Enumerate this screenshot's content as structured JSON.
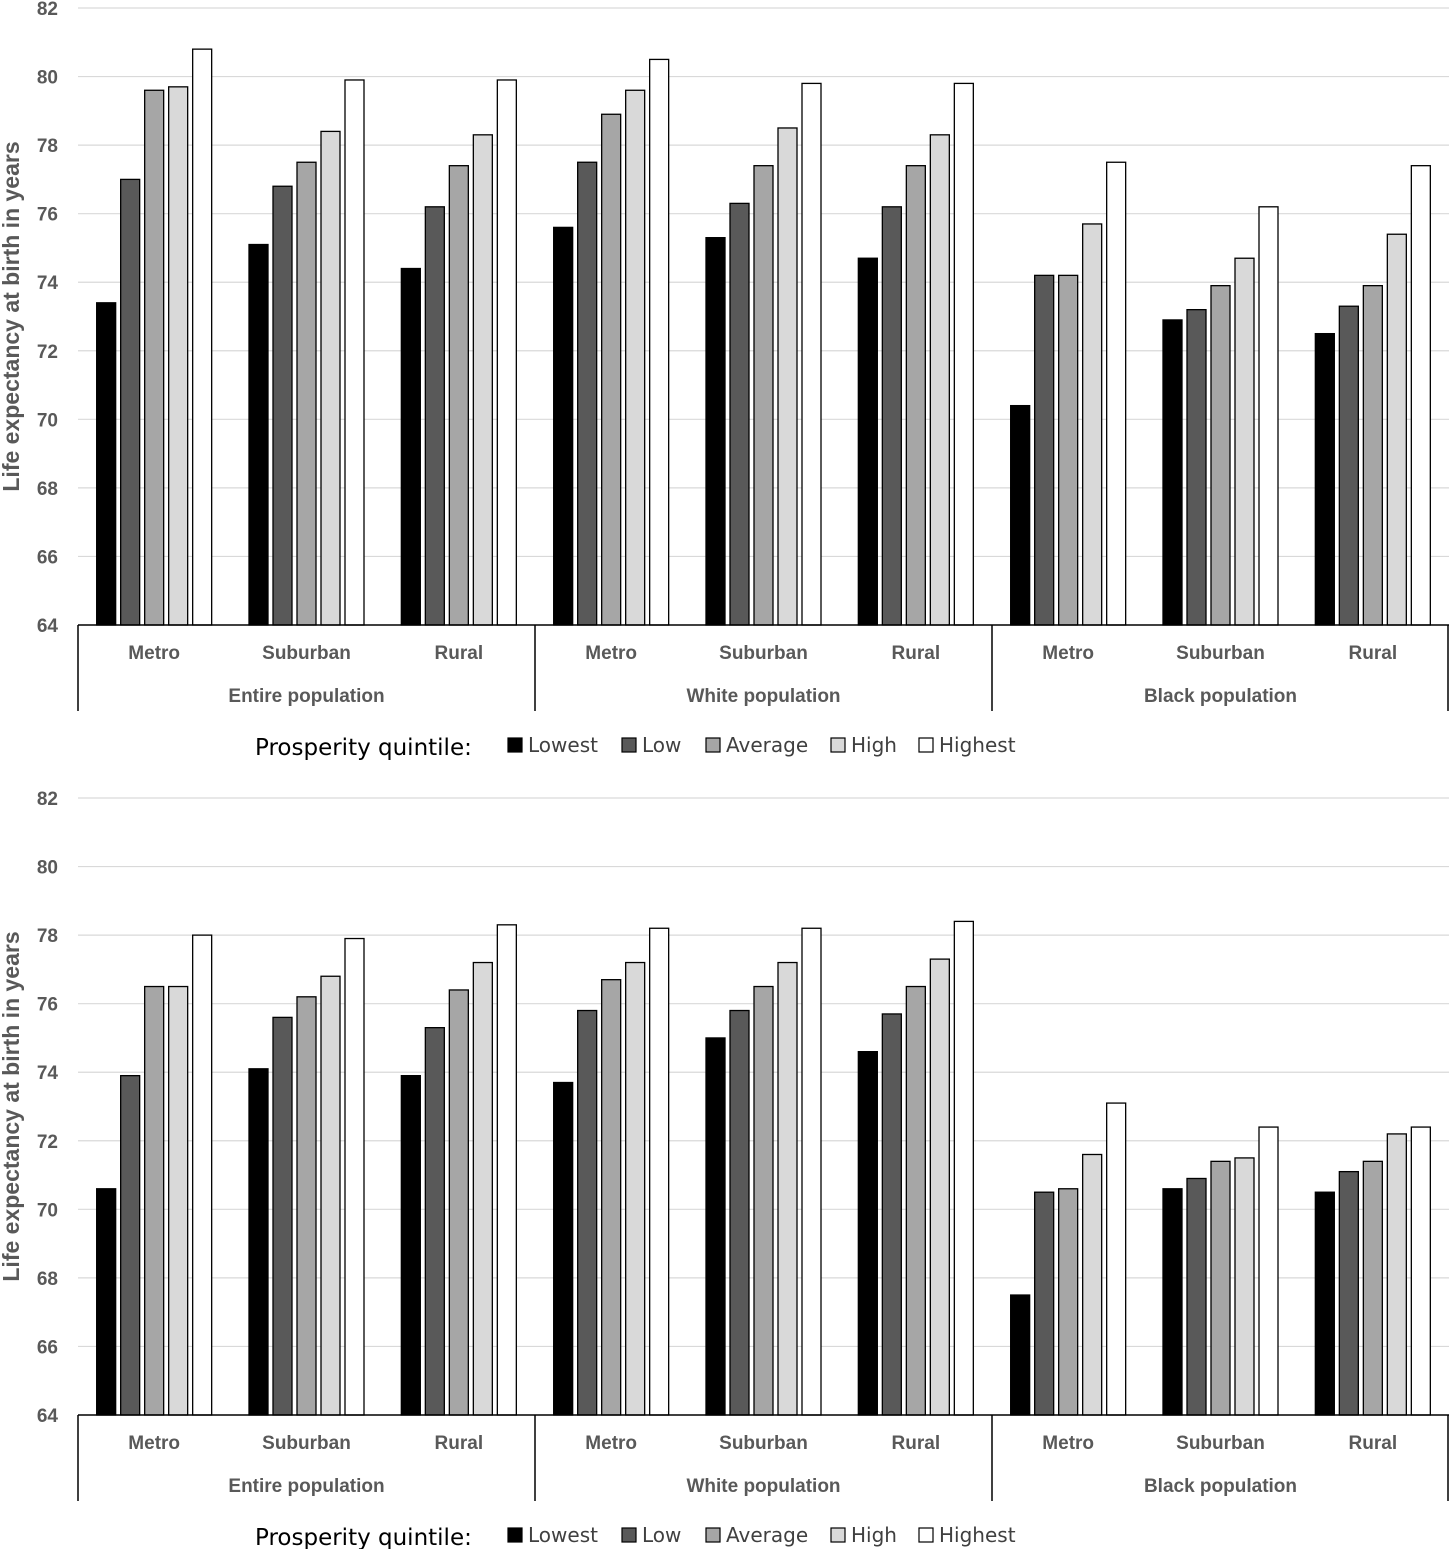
{
  "colors": {
    "Lowest": "#000000",
    "Low": "#595959",
    "Average": "#a6a6a6",
    "High": "#d9d9d9",
    "Highest": "#ffffff",
    "grid": "#d9d9d9",
    "axis": "#000000"
  },
  "chart_data": [
    {
      "type": "bar",
      "ylabel": "Life expectancy at birth in years",
      "ylim": [
        64,
        82
      ],
      "yticks": [
        "64",
        "66",
        "68",
        "70",
        "72",
        "74",
        "76",
        "78",
        "80",
        "82"
      ],
      "groups": [
        "Entire population",
        "White population",
        "Black population"
      ],
      "categories": [
        "Metro",
        "Suburban",
        "Rural",
        "Metro",
        "Suburban",
        "Rural",
        "Metro",
        "Suburban",
        "Rural"
      ],
      "legend_title": "Prosperity quintile:",
      "series": [
        {
          "name": "Lowest",
          "values": [
            73.4,
            75.1,
            74.4,
            75.6,
            75.3,
            74.7,
            70.4,
            72.9,
            72.5
          ]
        },
        {
          "name": "Low",
          "values": [
            77.0,
            76.8,
            76.2,
            77.5,
            76.3,
            76.2,
            74.2,
            73.2,
            73.3
          ]
        },
        {
          "name": "Average",
          "values": [
            79.6,
            77.5,
            77.4,
            78.9,
            77.4,
            77.4,
            74.2,
            73.9,
            73.9
          ]
        },
        {
          "name": "High",
          "values": [
            79.7,
            78.4,
            78.3,
            79.6,
            78.5,
            78.3,
            75.7,
            74.7,
            75.4
          ]
        },
        {
          "name": "Highest",
          "values": [
            80.8,
            79.9,
            79.9,
            80.5,
            79.8,
            79.8,
            77.5,
            76.2,
            77.4
          ]
        }
      ]
    },
    {
      "type": "bar",
      "ylabel": "Life expectancy at birth in years",
      "ylim": [
        64,
        82
      ],
      "yticks": [
        "64",
        "66",
        "68",
        "70",
        "72",
        "74",
        "76",
        "78",
        "80",
        "82"
      ],
      "groups": [
        "Entire population",
        "White population",
        "Black population"
      ],
      "categories": [
        "Metro",
        "Suburban",
        "Rural",
        "Metro",
        "Suburban",
        "Rural",
        "Metro",
        "Suburban",
        "Rural"
      ],
      "legend_title": "Prosperity quintile:",
      "series": [
        {
          "name": "Lowest",
          "values": [
            70.6,
            74.1,
            73.9,
            73.7,
            75.0,
            74.6,
            67.5,
            70.6,
            70.5
          ]
        },
        {
          "name": "Low",
          "values": [
            73.9,
            75.6,
            75.3,
            75.8,
            75.8,
            75.7,
            70.5,
            70.9,
            71.1
          ]
        },
        {
          "name": "Average",
          "values": [
            76.5,
            76.2,
            76.4,
            76.7,
            76.5,
            76.5,
            70.6,
            71.4,
            71.4
          ]
        },
        {
          "name": "High",
          "values": [
            76.5,
            76.8,
            77.2,
            77.2,
            77.2,
            77.3,
            71.6,
            71.5,
            72.2
          ]
        },
        {
          "name": "Highest",
          "values": [
            78.0,
            77.9,
            78.3,
            78.2,
            78.2,
            78.4,
            73.1,
            72.4,
            72.4
          ]
        }
      ]
    }
  ]
}
